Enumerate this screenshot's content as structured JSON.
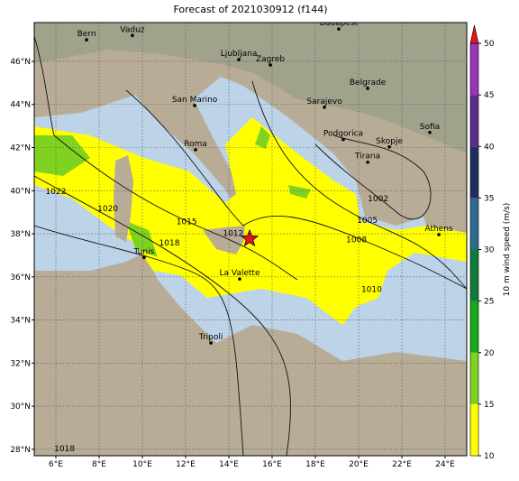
{
  "map": {
    "title": "Forecast of 2021030912 (f144)",
    "xlim": [
      5,
      25
    ],
    "ylim": [
      27.7,
      47.8
    ],
    "xticks": [
      {
        "value": 6,
        "label": "6°E"
      },
      {
        "value": 8,
        "label": "8°E"
      },
      {
        "value": 10,
        "label": "10°E"
      },
      {
        "value": 12,
        "label": "12°E"
      },
      {
        "value": 14,
        "label": "14°E"
      },
      {
        "value": 16,
        "label": "16°E"
      },
      {
        "value": 18,
        "label": "18°E"
      },
      {
        "value": 20,
        "label": "20°E"
      },
      {
        "value": 22,
        "label": "22°E"
      },
      {
        "value": 24,
        "label": "24°E"
      }
    ],
    "yticks": [
      {
        "value": 28,
        "label": "28°N"
      },
      {
        "value": 30,
        "label": "30°N"
      },
      {
        "value": 32,
        "label": "32°N"
      },
      {
        "value": 34,
        "label": "34°N"
      },
      {
        "value": 36,
        "label": "36°N"
      },
      {
        "value": 38,
        "label": "38°N"
      },
      {
        "value": 40,
        "label": "40°N"
      },
      {
        "value": 42,
        "label": "42°N"
      },
      {
        "value": 44,
        "label": "44°N"
      },
      {
        "value": 46,
        "label": "46°N"
      }
    ],
    "grid": true,
    "cities": [
      {
        "name": "Bern",
        "lon": 7.42,
        "lat": 47.0
      },
      {
        "name": "Vaduz",
        "lon": 9.54,
        "lat": 47.2
      },
      {
        "name": "Budapest",
        "lon": 19.08,
        "lat": 47.5
      },
      {
        "name": "Ljubljana",
        "lon": 14.46,
        "lat": 46.08
      },
      {
        "name": "Zagreb",
        "lon": 15.92,
        "lat": 45.83
      },
      {
        "name": "Belgrade",
        "lon": 20.42,
        "lat": 44.75
      },
      {
        "name": "Sarajevo",
        "lon": 18.42,
        "lat": 43.87
      },
      {
        "name": "San Marino",
        "lon": 12.42,
        "lat": 43.95
      },
      {
        "name": "Roma",
        "lon": 12.46,
        "lat": 41.9
      },
      {
        "name": "Podgorica",
        "lon": 19.29,
        "lat": 42.37
      },
      {
        "name": "Sofia",
        "lon": 23.29,
        "lat": 42.7
      },
      {
        "name": "Skopje",
        "lon": 21.42,
        "lat": 42.03
      },
      {
        "name": "Tirana",
        "lon": 20.42,
        "lat": 41.32
      },
      {
        "name": "Athens",
        "lon": 23.71,
        "lat": 37.96
      },
      {
        "name": "Tunis",
        "lon": 10.08,
        "lat": 36.9
      },
      {
        "name": "La Valette",
        "lon": 14.5,
        "lat": 35.9
      },
      {
        "name": "Tripoli",
        "lon": 13.17,
        "lat": 32.93
      }
    ],
    "marker": {
      "lon": 14.96,
      "lat": 37.77,
      "color": "#e8141e"
    },
    "isobar_labels": [
      {
        "label": "1022",
        "lon": 6.0,
        "lat": 39.85
      },
      {
        "label": "1020",
        "lon": 8.4,
        "lat": 39.05
      },
      {
        "label": "1015",
        "lon": 12.05,
        "lat": 38.45
      },
      {
        "label": "1018",
        "lon": 11.25,
        "lat": 37.45
      },
      {
        "label": "1012",
        "lon": 14.2,
        "lat": 37.9
      },
      {
        "label": "1002",
        "lon": 20.9,
        "lat": 39.5
      },
      {
        "label": "1005",
        "lon": 20.4,
        "lat": 38.5
      },
      {
        "label": "1008",
        "lon": 19.9,
        "lat": 37.6
      },
      {
        "label": "1010",
        "lon": 20.6,
        "lat": 35.3
      },
      {
        "label": "1018",
        "lon": 6.4,
        "lat": 27.9
      }
    ],
    "colorbar": {
      "label": "10 m wind speed (m/s)",
      "lim": [
        10,
        50
      ],
      "ticks": [
        10,
        15,
        20,
        25,
        30,
        35,
        40,
        45,
        50
      ],
      "colors": [
        "#ffff00",
        "#7fd320",
        "#18a818",
        "#107a3a",
        "#2e6a8e",
        "#1e2f5e",
        "#5a2c8c",
        "#9a35b5"
      ],
      "extend_color": "#e8141e"
    }
  }
}
